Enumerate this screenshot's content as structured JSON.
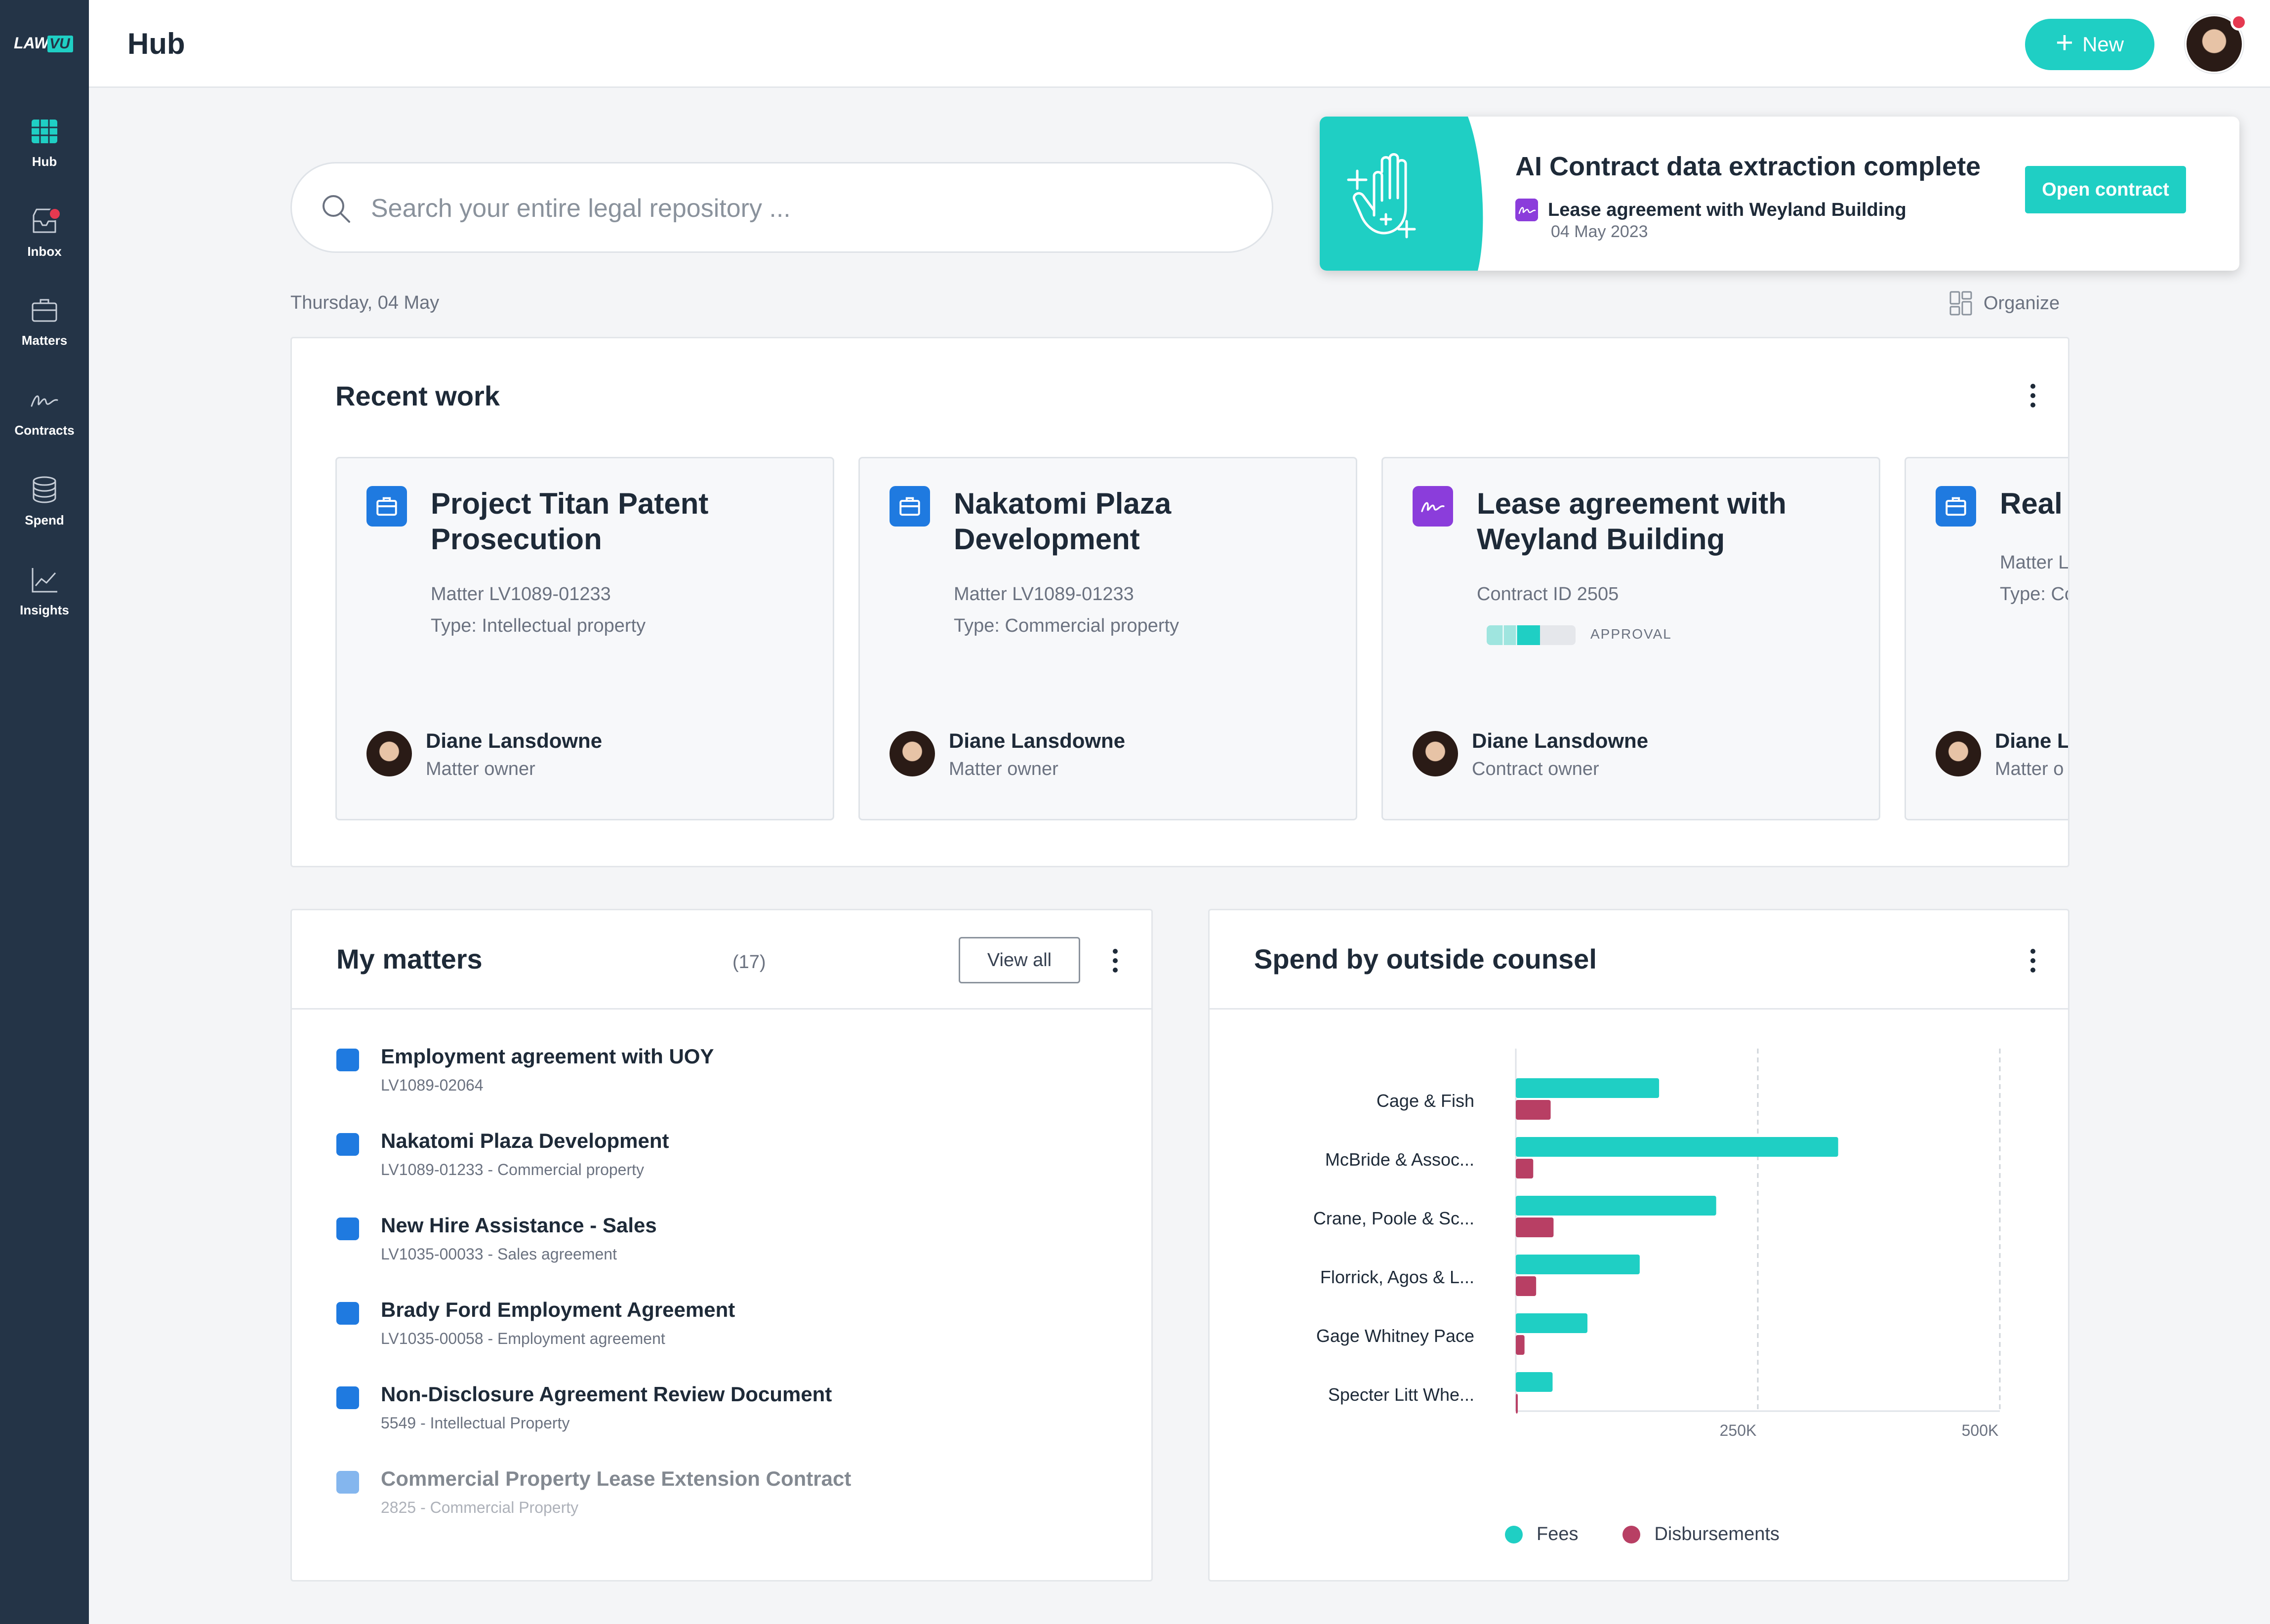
{
  "brand": {
    "logo_text": "LAWVU",
    "accent": "#1fcfc4",
    "sidebar_bg": "#243447",
    "matter_color": "#1f7ae0",
    "contract_color": "#8b3ddb",
    "alert_color": "#e53950"
  },
  "sidebar": {
    "items": [
      {
        "label": "Hub",
        "icon": "grid-icon",
        "active": true
      },
      {
        "label": "Inbox",
        "icon": "inbox-icon",
        "badge": true
      },
      {
        "label": "Matters",
        "icon": "briefcase-icon"
      },
      {
        "label": "Contracts",
        "icon": "signature-icon"
      },
      {
        "label": "Spend",
        "icon": "coins-icon"
      },
      {
        "label": "Insights",
        "icon": "line-chart-icon"
      }
    ]
  },
  "header": {
    "title": "Hub",
    "new_label": "New"
  },
  "search": {
    "placeholder": "Search your entire legal repository ..."
  },
  "notification": {
    "title": "AI Contract data extraction complete",
    "doc_name": "Lease agreement with Weyland Building",
    "date": "04 May 2023",
    "button": "Open contract"
  },
  "date_label": "Thursday, 04 May",
  "organize_label": "Organize",
  "recent_work": {
    "title": "Recent work",
    "cards": [
      {
        "icon": "briefcase-icon",
        "title": "Project Titan Patent Prosecution",
        "line1": "Matter LV1089-01233",
        "line2": "Type:  Intellectual property",
        "owner": "Diane Lansdowne",
        "role": "Matter owner"
      },
      {
        "icon": "briefcase-icon",
        "title": "Nakatomi Plaza Development",
        "line1": "Matter LV1089-01233",
        "line2": "Type:  Commercial property",
        "owner": "Diane Lansdowne",
        "role": "Matter owner"
      },
      {
        "icon": "signature-icon",
        "title": "Lease agreement with Weyland Building",
        "line1": "Contract ID 2505",
        "status": "APPROVAL",
        "progress": 0.6,
        "owner": "Diane Lansdowne",
        "role": "Contract owner"
      },
      {
        "icon": "briefcase-icon",
        "title": "Real E",
        "line1": "Matter L",
        "line2": "Type:  Co",
        "owner": "Diane La",
        "role": "Matter o"
      }
    ]
  },
  "my_matters": {
    "title": "My matters",
    "count": "(17)",
    "view_all": "View all",
    "items": [
      {
        "title": "Employment agreement with UOY",
        "sub": "LV1089-02064"
      },
      {
        "title": "Nakatomi Plaza Development",
        "sub": "LV1089-01233 - Commercial property"
      },
      {
        "title": "New Hire Assistance - Sales",
        "sub": "LV1035-00033 - Sales agreement"
      },
      {
        "title": "Brady Ford Employment Agreement",
        "sub": "LV1035-00058 - Employment agreement"
      },
      {
        "title": "Non-Disclosure Agreement Review Document",
        "sub": "5549 - Intellectual Property"
      },
      {
        "title": "Commercial Property Lease Extension Contract",
        "sub": "2825 - Commercial Property"
      }
    ]
  },
  "spend": {
    "title": "Spend by outside counsel"
  },
  "chart_data": {
    "type": "bar",
    "orientation": "horizontal",
    "categories": [
      "Cage & Fish",
      "McBride & Assoc...",
      "Crane, Poole & Sc...",
      "Florrick, Agos & L...",
      "Gage Whitney Pace",
      "Specter Litt Whe..."
    ],
    "series": [
      {
        "name": "Fees",
        "color": "#1fcfc4",
        "values": [
          148000,
          333000,
          207000,
          128000,
          74000,
          38000
        ]
      },
      {
        "name": "Disbursements",
        "color": "#b83f64",
        "values": [
          36000,
          18000,
          39000,
          21000,
          9000,
          2000
        ]
      }
    ],
    "xticks": [
      {
        "value": 250000,
        "label": "250K"
      },
      {
        "value": 500000,
        "label": "500K"
      }
    ],
    "xlim": [
      0,
      500000
    ],
    "legend_position": "bottom",
    "grid": "dashed vertical"
  }
}
